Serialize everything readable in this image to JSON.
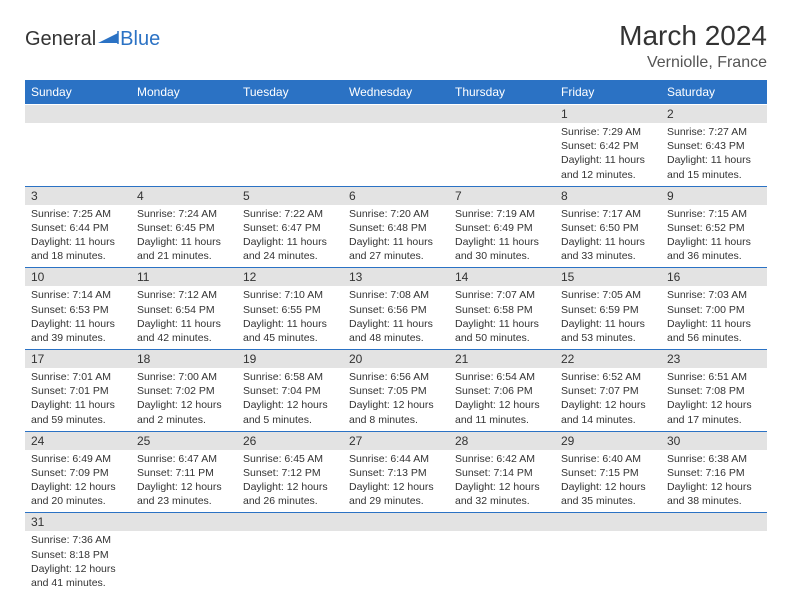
{
  "logo": {
    "general": "General",
    "blue": "Blue"
  },
  "title": "March 2024",
  "location": "Verniolle, France",
  "colors": {
    "header_bg": "#2b72c4",
    "header_fg": "#ffffff",
    "daynum_bg": "#e3e3e3",
    "cell_border": "#2b72c4",
    "text": "#333333"
  },
  "dow": [
    "Sunday",
    "Monday",
    "Tuesday",
    "Wednesday",
    "Thursday",
    "Friday",
    "Saturday"
  ],
  "weeks": [
    {
      "nums": [
        "",
        "",
        "",
        "",
        "",
        "1",
        "2"
      ],
      "cells": [
        null,
        null,
        null,
        null,
        null,
        {
          "sr": "Sunrise: 7:29 AM",
          "ss": "Sunset: 6:42 PM",
          "dl1": "Daylight: 11 hours",
          "dl2": "and 12 minutes."
        },
        {
          "sr": "Sunrise: 7:27 AM",
          "ss": "Sunset: 6:43 PM",
          "dl1": "Daylight: 11 hours",
          "dl2": "and 15 minutes."
        }
      ]
    },
    {
      "nums": [
        "3",
        "4",
        "5",
        "6",
        "7",
        "8",
        "9"
      ],
      "cells": [
        {
          "sr": "Sunrise: 7:25 AM",
          "ss": "Sunset: 6:44 PM",
          "dl1": "Daylight: 11 hours",
          "dl2": "and 18 minutes."
        },
        {
          "sr": "Sunrise: 7:24 AM",
          "ss": "Sunset: 6:45 PM",
          "dl1": "Daylight: 11 hours",
          "dl2": "and 21 minutes."
        },
        {
          "sr": "Sunrise: 7:22 AM",
          "ss": "Sunset: 6:47 PM",
          "dl1": "Daylight: 11 hours",
          "dl2": "and 24 minutes."
        },
        {
          "sr": "Sunrise: 7:20 AM",
          "ss": "Sunset: 6:48 PM",
          "dl1": "Daylight: 11 hours",
          "dl2": "and 27 minutes."
        },
        {
          "sr": "Sunrise: 7:19 AM",
          "ss": "Sunset: 6:49 PM",
          "dl1": "Daylight: 11 hours",
          "dl2": "and 30 minutes."
        },
        {
          "sr": "Sunrise: 7:17 AM",
          "ss": "Sunset: 6:50 PM",
          "dl1": "Daylight: 11 hours",
          "dl2": "and 33 minutes."
        },
        {
          "sr": "Sunrise: 7:15 AM",
          "ss": "Sunset: 6:52 PM",
          "dl1": "Daylight: 11 hours",
          "dl2": "and 36 minutes."
        }
      ]
    },
    {
      "nums": [
        "10",
        "11",
        "12",
        "13",
        "14",
        "15",
        "16"
      ],
      "cells": [
        {
          "sr": "Sunrise: 7:14 AM",
          "ss": "Sunset: 6:53 PM",
          "dl1": "Daylight: 11 hours",
          "dl2": "and 39 minutes."
        },
        {
          "sr": "Sunrise: 7:12 AM",
          "ss": "Sunset: 6:54 PM",
          "dl1": "Daylight: 11 hours",
          "dl2": "and 42 minutes."
        },
        {
          "sr": "Sunrise: 7:10 AM",
          "ss": "Sunset: 6:55 PM",
          "dl1": "Daylight: 11 hours",
          "dl2": "and 45 minutes."
        },
        {
          "sr": "Sunrise: 7:08 AM",
          "ss": "Sunset: 6:56 PM",
          "dl1": "Daylight: 11 hours",
          "dl2": "and 48 minutes."
        },
        {
          "sr": "Sunrise: 7:07 AM",
          "ss": "Sunset: 6:58 PM",
          "dl1": "Daylight: 11 hours",
          "dl2": "and 50 minutes."
        },
        {
          "sr": "Sunrise: 7:05 AM",
          "ss": "Sunset: 6:59 PM",
          "dl1": "Daylight: 11 hours",
          "dl2": "and 53 minutes."
        },
        {
          "sr": "Sunrise: 7:03 AM",
          "ss": "Sunset: 7:00 PM",
          "dl1": "Daylight: 11 hours",
          "dl2": "and 56 minutes."
        }
      ]
    },
    {
      "nums": [
        "17",
        "18",
        "19",
        "20",
        "21",
        "22",
        "23"
      ],
      "cells": [
        {
          "sr": "Sunrise: 7:01 AM",
          "ss": "Sunset: 7:01 PM",
          "dl1": "Daylight: 11 hours",
          "dl2": "and 59 minutes."
        },
        {
          "sr": "Sunrise: 7:00 AM",
          "ss": "Sunset: 7:02 PM",
          "dl1": "Daylight: 12 hours",
          "dl2": "and 2 minutes."
        },
        {
          "sr": "Sunrise: 6:58 AM",
          "ss": "Sunset: 7:04 PM",
          "dl1": "Daylight: 12 hours",
          "dl2": "and 5 minutes."
        },
        {
          "sr": "Sunrise: 6:56 AM",
          "ss": "Sunset: 7:05 PM",
          "dl1": "Daylight: 12 hours",
          "dl2": "and 8 minutes."
        },
        {
          "sr": "Sunrise: 6:54 AM",
          "ss": "Sunset: 7:06 PM",
          "dl1": "Daylight: 12 hours",
          "dl2": "and 11 minutes."
        },
        {
          "sr": "Sunrise: 6:52 AM",
          "ss": "Sunset: 7:07 PM",
          "dl1": "Daylight: 12 hours",
          "dl2": "and 14 minutes."
        },
        {
          "sr": "Sunrise: 6:51 AM",
          "ss": "Sunset: 7:08 PM",
          "dl1": "Daylight: 12 hours",
          "dl2": "and 17 minutes."
        }
      ]
    },
    {
      "nums": [
        "24",
        "25",
        "26",
        "27",
        "28",
        "29",
        "30"
      ],
      "cells": [
        {
          "sr": "Sunrise: 6:49 AM",
          "ss": "Sunset: 7:09 PM",
          "dl1": "Daylight: 12 hours",
          "dl2": "and 20 minutes."
        },
        {
          "sr": "Sunrise: 6:47 AM",
          "ss": "Sunset: 7:11 PM",
          "dl1": "Daylight: 12 hours",
          "dl2": "and 23 minutes."
        },
        {
          "sr": "Sunrise: 6:45 AM",
          "ss": "Sunset: 7:12 PM",
          "dl1": "Daylight: 12 hours",
          "dl2": "and 26 minutes."
        },
        {
          "sr": "Sunrise: 6:44 AM",
          "ss": "Sunset: 7:13 PM",
          "dl1": "Daylight: 12 hours",
          "dl2": "and 29 minutes."
        },
        {
          "sr": "Sunrise: 6:42 AM",
          "ss": "Sunset: 7:14 PM",
          "dl1": "Daylight: 12 hours",
          "dl2": "and 32 minutes."
        },
        {
          "sr": "Sunrise: 6:40 AM",
          "ss": "Sunset: 7:15 PM",
          "dl1": "Daylight: 12 hours",
          "dl2": "and 35 minutes."
        },
        {
          "sr": "Sunrise: 6:38 AM",
          "ss": "Sunset: 7:16 PM",
          "dl1": "Daylight: 12 hours",
          "dl2": "and 38 minutes."
        }
      ]
    },
    {
      "nums": [
        "31",
        "",
        "",
        "",
        "",
        "",
        ""
      ],
      "cells": [
        {
          "sr": "Sunrise: 7:36 AM",
          "ss": "Sunset: 8:18 PM",
          "dl1": "Daylight: 12 hours",
          "dl2": "and 41 minutes."
        },
        null,
        null,
        null,
        null,
        null,
        null
      ]
    }
  ]
}
